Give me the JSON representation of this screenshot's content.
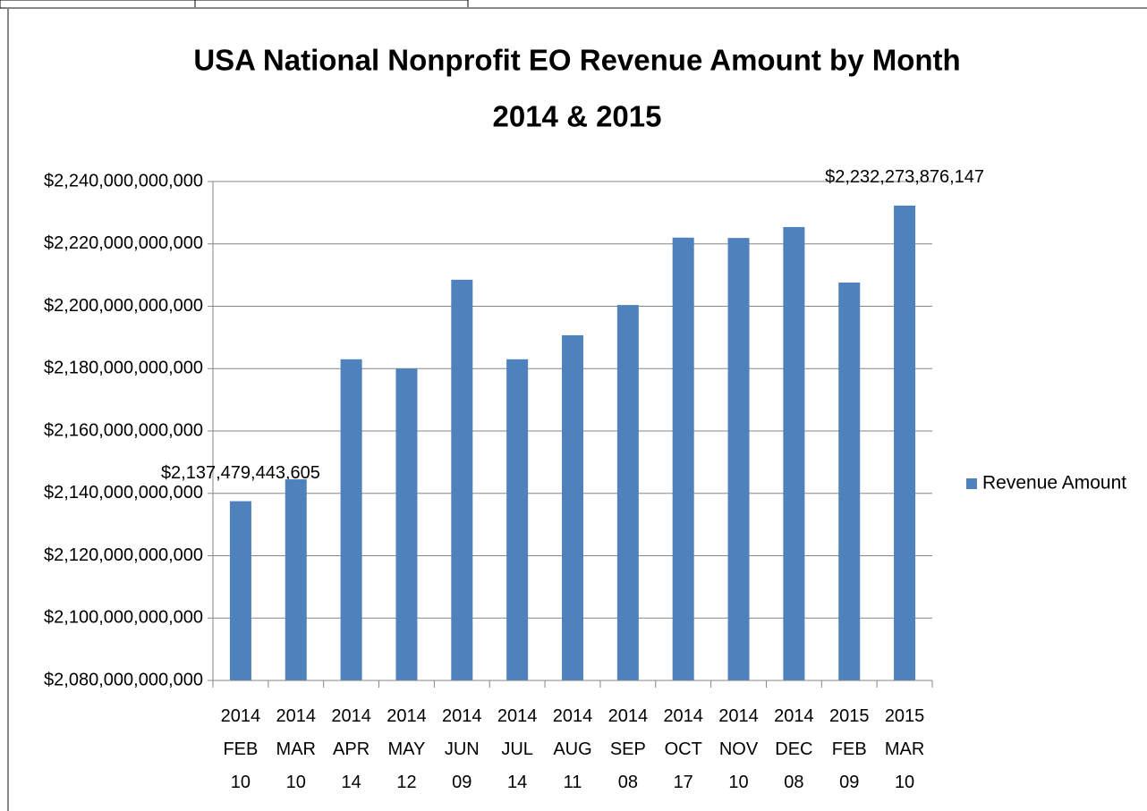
{
  "chart_data": {
    "type": "bar",
    "title": "USA National Nonprofit EO Revenue Amount by Month",
    "subtitle": "2014 & 2015",
    "categories": [
      "2014\nFEB\n10",
      "2014\nMAR\n10",
      "2014\nAPR\n14",
      "2014\nMAY\n12",
      "2014\nJUN\n09",
      "2014\nJUL 14",
      "2014\nAUG\n11",
      "2014\nSEP\n08",
      "2014\nOCT\n17",
      "2014\nNOV\n10",
      "2014\nDEC\n08",
      "2015\nFEB\n09",
      "2015\nMAR\n10"
    ],
    "series": [
      {
        "name": "Revenue Amount",
        "color": "#4f81bd",
        "values": [
          2137479443605,
          2144500000000,
          2183000000000,
          2180000000000,
          2208500000000,
          2183000000000,
          2190700000000,
          2200400000000,
          2222000000000,
          2221900000000,
          2225400000000,
          2207600000000,
          2232273876147
        ],
        "value_labels": [
          "$2,137,479,443,605",
          null,
          null,
          null,
          null,
          null,
          null,
          null,
          null,
          null,
          null,
          null,
          "$2,232,273,876,147"
        ]
      }
    ],
    "ylim": [
      2080000000000,
      2240000000000
    ],
    "yticks": [
      {
        "value": 2080000000000,
        "label": "$2,080,000,000,000"
      },
      {
        "value": 2100000000000,
        "label": "$2,100,000,000,000"
      },
      {
        "value": 2120000000000,
        "label": "$2,120,000,000,000"
      },
      {
        "value": 2140000000000,
        "label": "$2,140,000,000,000"
      },
      {
        "value": 2160000000000,
        "label": "$2,160,000,000,000"
      },
      {
        "value": 2180000000000,
        "label": "$2,180,000,000,000"
      },
      {
        "value": 2200000000000,
        "label": "$2,200,000,000,000"
      },
      {
        "value": 2220000000000,
        "label": "$2,220,000,000,000"
      },
      {
        "value": 2240000000000,
        "label": "$2,240,000,000,000"
      }
    ],
    "grid": true,
    "legend": "right"
  }
}
